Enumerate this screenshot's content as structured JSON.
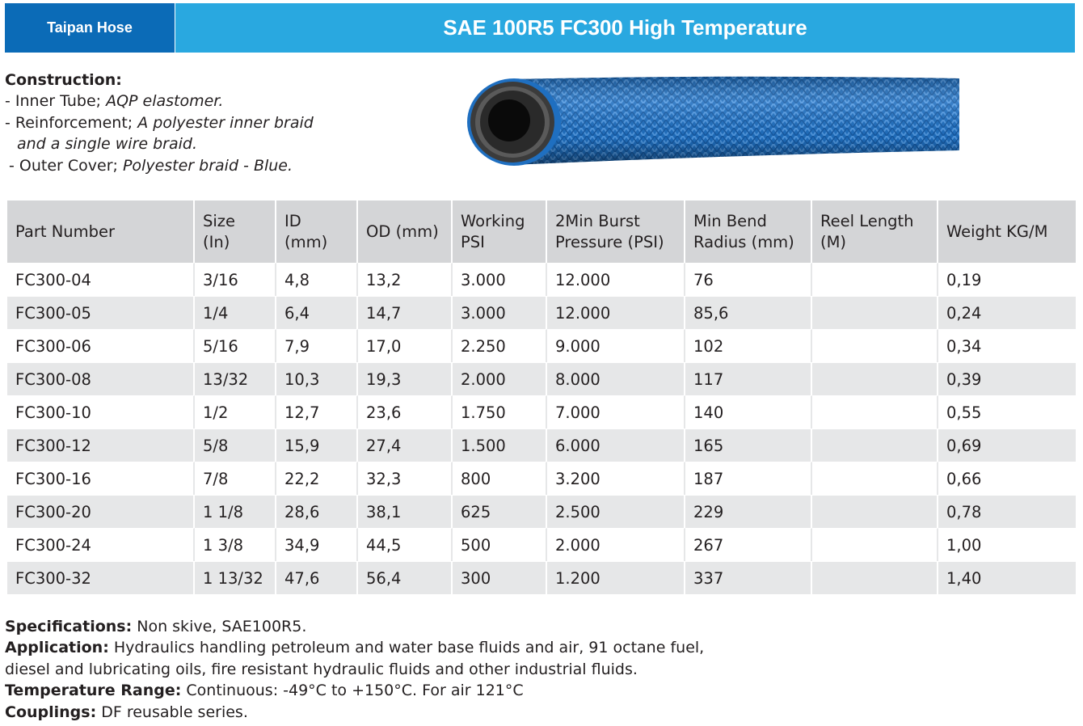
{
  "header": {
    "brand": "Taipan Hose",
    "title": "SAE 100R5 FC300 High Temperature",
    "brand_color": "#0b6bb7",
    "title_color": "#29a8e0"
  },
  "construction": {
    "heading": "Construction:",
    "inner_tube_label": "- Inner Tube; ",
    "inner_tube_value": "AQP elastomer.",
    "reinforcement_label": "- Reinforcement; ",
    "reinforcement_value_1": "A polyester inner braid",
    "reinforcement_value_2": "and a single wire braid.",
    "outer_cover_label": "- Outer Cover; ",
    "outer_cover_value": "Polyester braid - Blue."
  },
  "table": {
    "columns": [
      "Part Number",
      "Size (In)",
      "ID (mm)",
      "OD (mm)",
      "Working PSI",
      "2Min Burst Pressure (PSI)",
      "Min Bend Radius (mm)",
      "Reel Length (M)",
      "Weight KG/M"
    ],
    "rows": [
      [
        "FC300-04",
        "3/16",
        "4,8",
        "13,2",
        "3.000",
        "12.000",
        "76",
        "",
        "0,19"
      ],
      [
        "FC300-05",
        "1/4",
        "6,4",
        "14,7",
        "3.000",
        "12.000",
        "85,6",
        "",
        "0,24"
      ],
      [
        "FC300-06",
        "5/16",
        "7,9",
        "17,0",
        "2.250",
        "9.000",
        "102",
        "",
        "0,34"
      ],
      [
        "FC300-08",
        "13/32",
        "10,3",
        "19,3",
        "2.000",
        "8.000",
        "117",
        "",
        "0,39"
      ],
      [
        "FC300-10",
        "1/2",
        "12,7",
        "23,6",
        "1.750",
        "7.000",
        "140",
        "",
        "0,55"
      ],
      [
        "FC300-12",
        "5/8",
        "15,9",
        "27,4",
        "1.500",
        "6.000",
        "165",
        "",
        "0,69"
      ],
      [
        "FC300-16",
        "7/8",
        "22,2",
        "32,3",
        "800",
        "3.200",
        "187",
        "",
        "0,66"
      ],
      [
        "FC300-20",
        "1 1/8",
        "28,6",
        "38,1",
        "625",
        "2.500",
        "229",
        "",
        "0,78"
      ],
      [
        "FC300-24",
        "1 3/8",
        "34,9",
        "44,5",
        "500",
        "2.000",
        "267",
        "",
        "1,00"
      ],
      [
        "FC300-32",
        "1 13/32",
        "47,6",
        "56,4",
        "300",
        "1.200",
        "337",
        "",
        "1,40"
      ]
    ]
  },
  "specs": {
    "specifications_label": "Specifications:",
    "specifications_value": " Non skive, SAE100R5.",
    "application_label": "Application:",
    "application_value_1": " Hydraulics handling petroleum and water base fluids and air, 91 octane fuel,",
    "application_value_2": "diesel and lubricating oils, fire resistant hydraulic fluids and other industrial fluids.",
    "temperature_label": "Temperature Range:",
    "temperature_value": " Continuous: -49°C to +150°C. For air 121°C",
    "couplings_label": "Couplings:",
    "couplings_value": " DF reusable series."
  }
}
